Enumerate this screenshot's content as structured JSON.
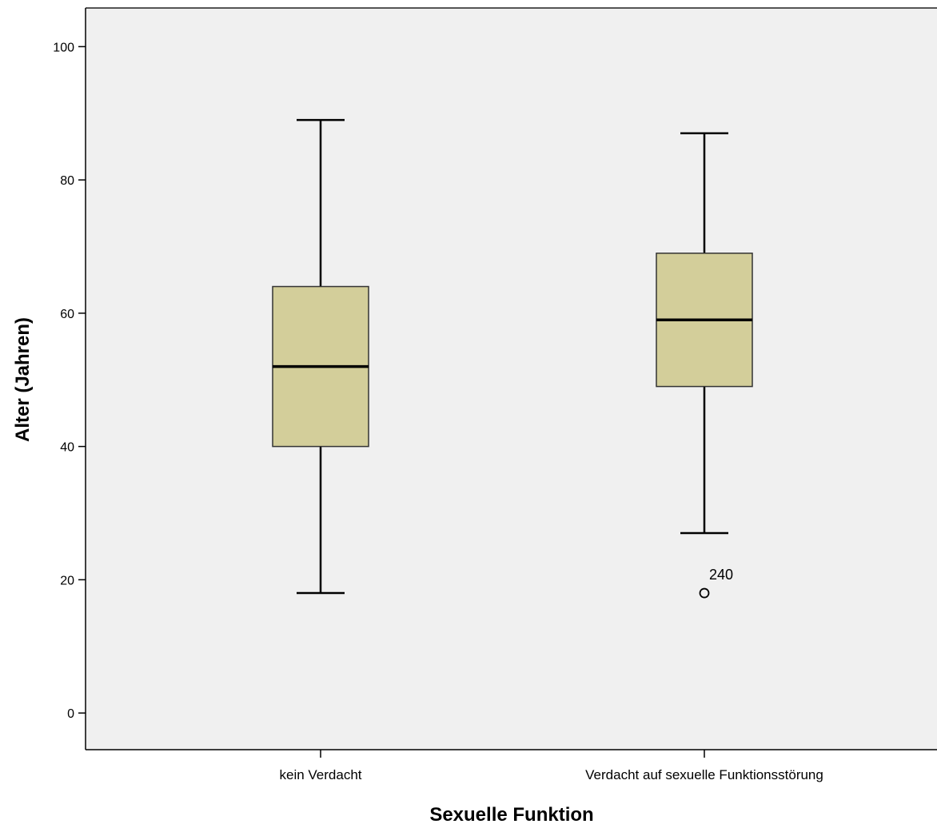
{
  "chart_data": {
    "type": "boxplot",
    "xlabel": "Sexuelle Funktion",
    "ylabel": "Alter (Jahren)",
    "ylim": [
      -5.5,
      105.8
    ],
    "yticks": [
      0,
      20,
      40,
      60,
      80,
      100
    ],
    "grid": false,
    "colors": {
      "plot_bg": "#f0f0f0",
      "box_fill": "#d3ce9a",
      "stroke": "#000000"
    },
    "categories": [
      "kein Verdacht",
      "Verdacht auf sexuelle Funktionsstörung"
    ],
    "boxes": [
      {
        "category": "kein Verdacht",
        "whisker_low": 18,
        "q1": 40,
        "median": 52,
        "q3": 64,
        "whisker_high": 89,
        "outliers": []
      },
      {
        "category": "Verdacht auf sexuelle Funktionsstörung",
        "whisker_low": 27,
        "q1": 49,
        "median": 59,
        "q3": 69,
        "whisker_high": 87,
        "outliers": [
          {
            "value": 18,
            "label": "240"
          }
        ]
      }
    ]
  }
}
